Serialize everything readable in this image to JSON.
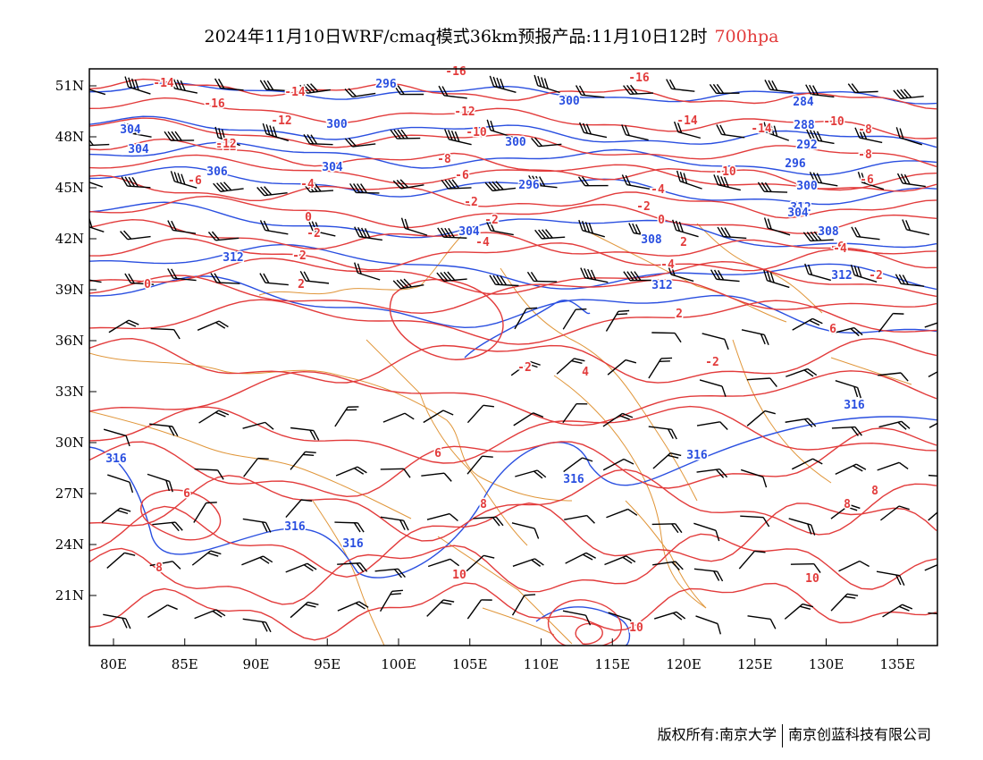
{
  "title": {
    "main": "2024年11月10日WRF/cmaq模式36km预报产品:11月10日12时",
    "level": "700hpa"
  },
  "colors": {
    "temperature": "#e23b3b",
    "height": "#2a4fe0",
    "border": "#e0963a",
    "wind": "#000000"
  },
  "axes": {
    "lon_ticks": [
      "80E",
      "85E",
      "90E",
      "95E",
      "100E",
      "105E",
      "110E",
      "115E",
      "120E",
      "125E",
      "130E",
      "135E"
    ],
    "lat_ticks": [
      "21N",
      "24N",
      "27N",
      "30N",
      "33N",
      "36N",
      "39N",
      "42N",
      "45N",
      "48N",
      "51N"
    ]
  },
  "temperature_labels": [
    "-16",
    "-14",
    "-16",
    "-14",
    "-16",
    "-12",
    "-12",
    "-14",
    "-12",
    "-10",
    "-10",
    "-8",
    "-8",
    "-6",
    "-6",
    "-4",
    "-4",
    "-2",
    "-2",
    "0",
    "0",
    "-2",
    "-2",
    "-4",
    "2",
    "-6",
    "-2",
    "-4",
    "-10",
    "-12",
    "-14",
    "-8",
    "-6",
    "-4",
    "-2",
    "-2",
    "-2",
    "0",
    "2",
    "2",
    "4",
    "6",
    "6",
    "8",
    "6",
    "8",
    "8",
    "8",
    "10",
    "10",
    "10"
  ],
  "height_labels": [
    "296",
    "300",
    "304",
    "304",
    "306",
    "300",
    "304",
    "300",
    "296",
    "312",
    "308",
    "304",
    "312",
    "312",
    "316",
    "316",
    "316",
    "316",
    "316",
    "316",
    "284",
    "288",
    "292",
    "296",
    "300",
    "304",
    "308",
    "312"
  ],
  "copyright": {
    "left": "版权所有:南京大学",
    "right": "南京创蓝科技有限公司"
  }
}
